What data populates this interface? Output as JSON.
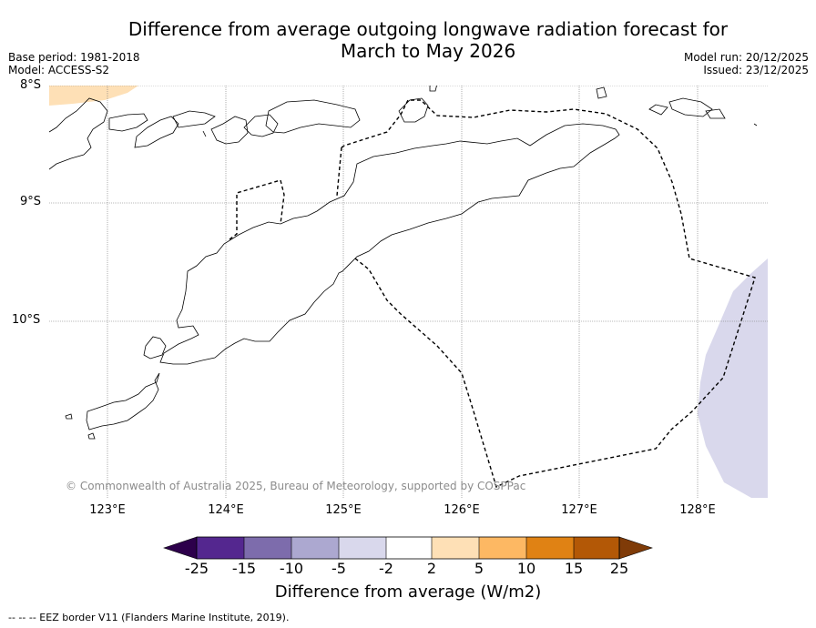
{
  "header": {
    "title_line1": "Difference from average outgoing longwave radiation forecast for",
    "title_line2": "March to May 2026",
    "base_period": "Base period: 1981-2018",
    "model": "Model: ACCESS-S2",
    "model_run": "Model run: 20/12/2025",
    "issued": "Issued: 23/12/2025"
  },
  "map": {
    "lat_labels": [
      "8°S",
      "9°S",
      "10°S"
    ],
    "lon_labels": [
      "123°E",
      "124°E",
      "125°E",
      "126°E",
      "127°E",
      "128°E"
    ],
    "copyright": "© Commonwealth of Australia 2025, Bureau of Meteorology, supported by COSPPac"
  },
  "colorbar": {
    "ticks": [
      "-25",
      "-15",
      "-10",
      "-5",
      "-2",
      "2",
      "5",
      "10",
      "15",
      "25"
    ],
    "colors": [
      "#54278f",
      "#7d6cac",
      "#aca8d0",
      "#d9d8ec",
      "#ffffff",
      "#fee0b6",
      "#fdb863",
      "#e08214",
      "#b35806"
    ],
    "under_color": "#2d004b",
    "over_color": "#7f3b08",
    "label": "Difference from average (W/m2)"
  },
  "legend": {
    "eez": "--  --  -- EEZ border V11 (Flanders Marine Institute, 2019)."
  }
}
